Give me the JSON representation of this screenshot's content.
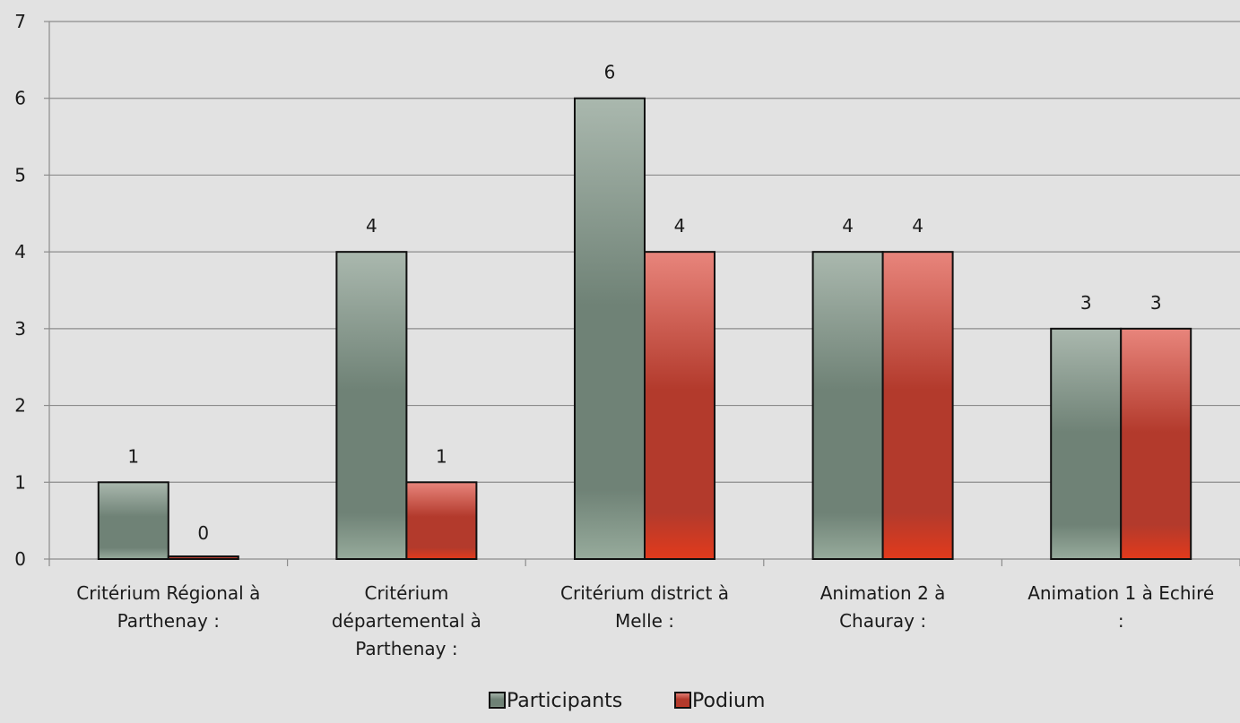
{
  "chart_data": {
    "type": "bar",
    "categories": [
      [
        "Critérium Régional à",
        "Parthenay :"
      ],
      [
        "Critérium",
        "départemental à",
        "Parthenay :"
      ],
      [
        "Critérium district à",
        "Melle :"
      ],
      [
        "Animation 2 à",
        "Chauray :"
      ],
      [
        "Animation 1 à Echiré",
        ":"
      ]
    ],
    "series": [
      {
        "name": "Participants",
        "values": [
          1,
          4,
          6,
          4,
          3
        ],
        "color_top": "#aab8ae",
        "color_mid": "#6f8276",
        "color_bottom": "#97ab9c"
      },
      {
        "name": "Podium",
        "values": [
          0,
          1,
          4,
          4,
          3
        ],
        "color_top": "#e8857c",
        "color_mid": "#b33a2c",
        "color_bottom": "#e23a1c"
      }
    ],
    "ylim": [
      0,
      7
    ],
    "yticks": [
      "0",
      "1",
      "2",
      "3",
      "4",
      "5",
      "6",
      "7"
    ],
    "grid": true,
    "legend_position": "bottom"
  }
}
